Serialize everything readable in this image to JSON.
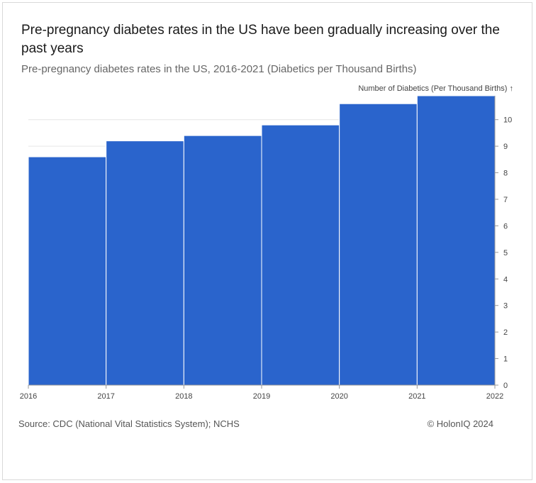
{
  "header": {
    "title": "Pre-pregnancy diabetes rates in the US have been gradually increasing over the past years",
    "subtitle": "Pre-pregnancy diabetes rates in the US, 2016-2021 (Diabetics per Thousand Births)"
  },
  "footer": {
    "source": "Source: CDC (National Vital Statistics System); NCHS",
    "copyright": "© HolonIQ 2024"
  },
  "colors": {
    "bar": "#2a64cc",
    "grid": "#e6e6e6",
    "axis": "#999999"
  },
  "chart_data": {
    "type": "bar",
    "title": "Pre-pregnancy diabetes rates in the US have been gradually increasing over the past years",
    "subtitle": "Pre-pregnancy diabetes rates in the US, 2016-2021 (Diabetics per Thousand Births)",
    "xlabel": "",
    "ylabel": "Number of Diabetics (Per Thousand Births) ↑",
    "x_ticks": [
      "2016",
      "2017",
      "2018",
      "2019",
      "2020",
      "2021",
      "2022"
    ],
    "bins": [
      {
        "start": "2016",
        "end": "2017",
        "value": 8.6
      },
      {
        "start": "2017",
        "end": "2018",
        "value": 9.2
      },
      {
        "start": "2018",
        "end": "2019",
        "value": 9.4
      },
      {
        "start": "2019",
        "end": "2020",
        "value": 9.8
      },
      {
        "start": "2020",
        "end": "2021",
        "value": 10.6
      },
      {
        "start": "2021",
        "end": "2022",
        "value": 10.9
      }
    ],
    "y_ticks": [
      0,
      1,
      2,
      3,
      4,
      5,
      6,
      7,
      8,
      9,
      10
    ],
    "ylim": [
      0,
      10.9
    ],
    "y_axis_side": "right",
    "grid": true,
    "legend": "none"
  }
}
